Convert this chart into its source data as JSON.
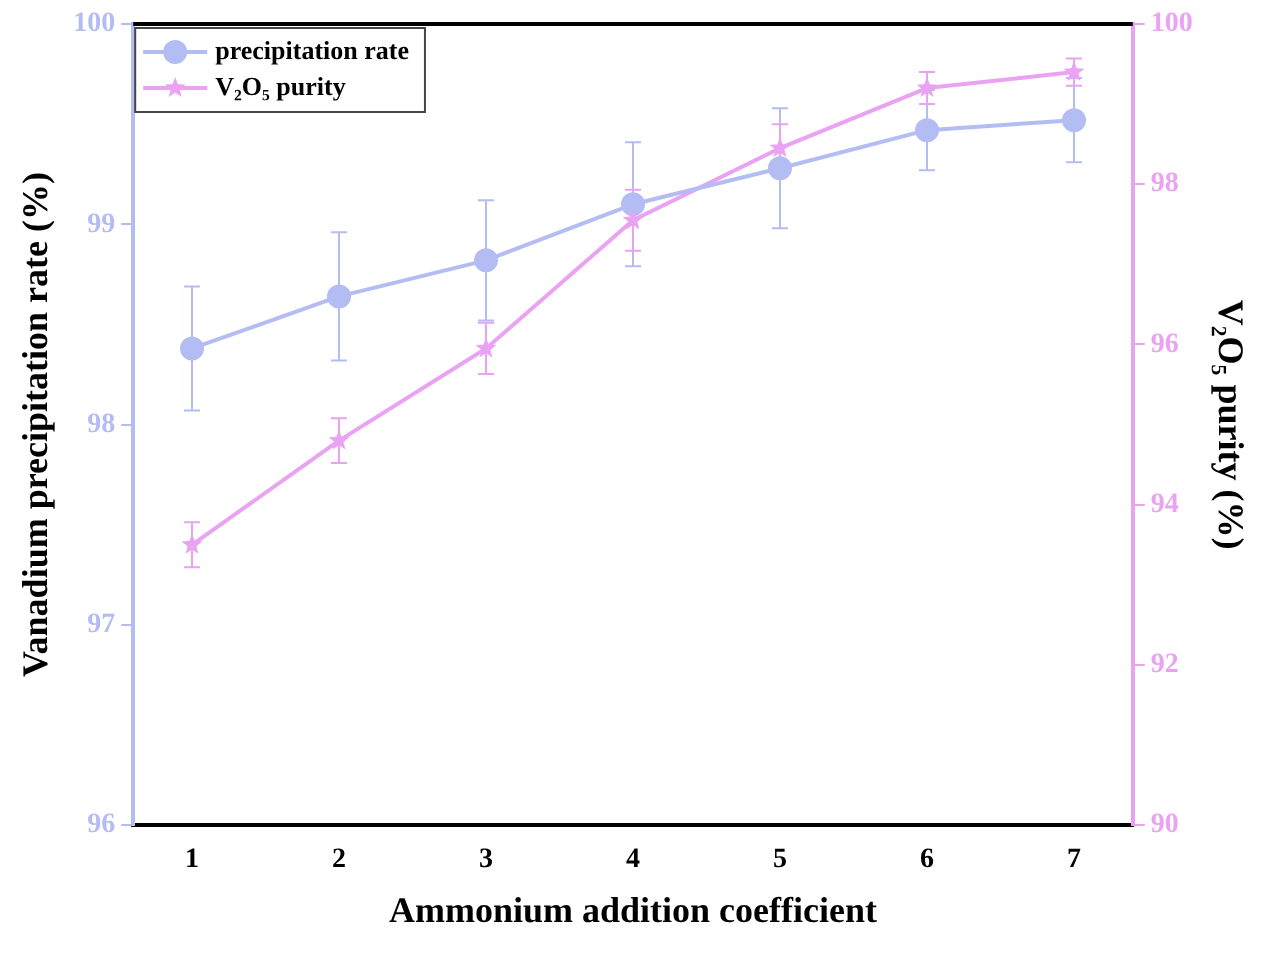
{
  "chart_data": {
    "type": "line",
    "xlabel": "Ammonium addition coefficient",
    "ylabel": "Vanadium precipitation rate (%)",
    "y2label": "V₂O₅ purity (%)",
    "x": [
      1,
      2,
      3,
      4,
      5,
      6,
      7
    ],
    "xlim": [
      0.6,
      7.4
    ],
    "xticks": [
      1,
      2,
      3,
      4,
      5,
      6,
      7
    ],
    "ylim": [
      96,
      100
    ],
    "yticks": [
      96,
      97,
      98,
      99,
      100
    ],
    "y2lim": [
      90,
      100
    ],
    "y2ticks": [
      90,
      92,
      94,
      96,
      98,
      100
    ],
    "legend": "top left",
    "grid": false,
    "line_style": "solid",
    "series": [
      {
        "name": "precipitation rate",
        "color": "#b4bcf4",
        "marker": "circle",
        "values": [
          98.38,
          98.64,
          98.82,
          99.1,
          99.28,
          99.47,
          99.52
        ],
        "errors": [
          0.31,
          0.32,
          0.3,
          0.31,
          0.3,
          0.2,
          0.21
        ]
      },
      {
        "name": "V₂O₅ purity",
        "color": "#eaa2f2",
        "marker": "star",
        "axis": "y2",
        "values": [
          93.5,
          94.8,
          95.95,
          97.55,
          98.45,
          99.2,
          99.4
        ],
        "errors": [
          0.28,
          0.28,
          0.32,
          0.38,
          0.3,
          0.2,
          0.17
        ]
      }
    ]
  }
}
